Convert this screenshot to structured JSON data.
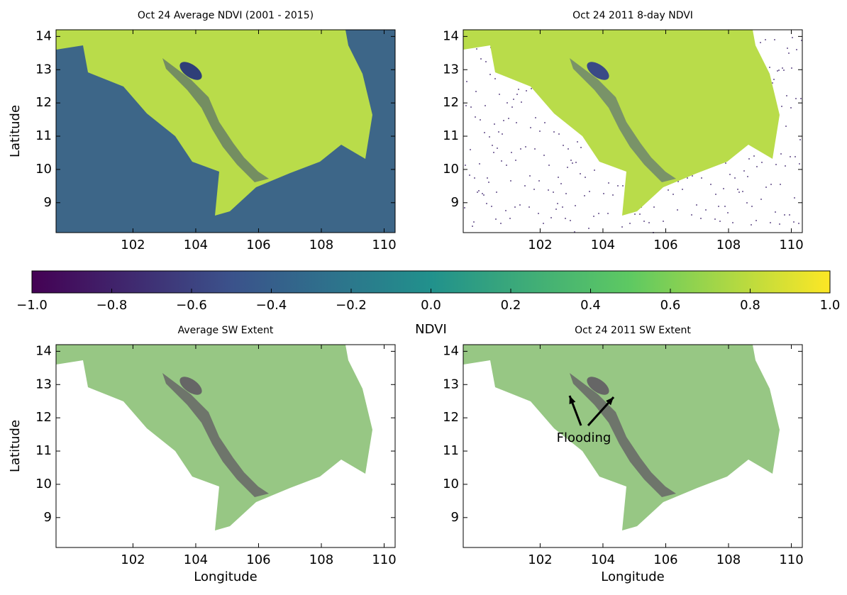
{
  "chart_data": [
    {
      "type": "map",
      "title": "Oct 24 Average NDVI (2001 - 2015)",
      "ylabel": "Latitude",
      "xlim": [
        99.55,
        110.35
      ],
      "ylim": [
        8.1,
        14.2
      ],
      "xticks": [
        102,
        104,
        106,
        108,
        110
      ],
      "yticks": [
        9,
        10,
        11,
        12,
        13,
        14
      ]
    },
    {
      "type": "map",
      "title": "Oct 24 2011 8-day NDVI",
      "xlim": [
        99.55,
        110.35
      ],
      "ylim": [
        8.1,
        14.2
      ],
      "xticks": [
        102,
        104,
        106,
        108,
        110
      ],
      "yticks": [
        9,
        10,
        11,
        12,
        13,
        14
      ]
    },
    {
      "type": "map",
      "title": "Average SW Extent",
      "ylabel": "Latitude",
      "xlabel": "Longitude",
      "xlim": [
        99.55,
        110.35
      ],
      "ylim": [
        8.1,
        14.2
      ],
      "xticks": [
        102,
        104,
        106,
        108,
        110
      ],
      "yticks": [
        9,
        10,
        11,
        12,
        13,
        14
      ]
    },
    {
      "type": "map",
      "title": "Oct 24 2011 SW Extent",
      "xlabel": "Longitude",
      "annotations": [
        "Flooding"
      ],
      "xlim": [
        99.55,
        110.35
      ],
      "ylim": [
        8.1,
        14.2
      ],
      "xticks": [
        102,
        104,
        106,
        108,
        110
      ],
      "yticks": [
        9,
        10,
        11,
        12,
        13,
        14
      ]
    },
    {
      "type": "colorbar",
      "label": "NDVI",
      "xlim": [
        -1,
        1
      ],
      "xticks": [
        {
          "value": -1,
          "label": "−1.0"
        },
        {
          "value": -0.8,
          "label": "−0.8"
        },
        {
          "value": -0.6,
          "label": "−0.6"
        },
        {
          "value": -0.4,
          "label": "−0.4"
        },
        {
          "value": -0.2,
          "label": "−0.2"
        },
        {
          "value": 0,
          "label": "0.0"
        },
        0.2,
        0.4,
        0.6,
        0.8,
        {
          "value": 1,
          "label": "1.0"
        }
      ]
    }
  ]
}
